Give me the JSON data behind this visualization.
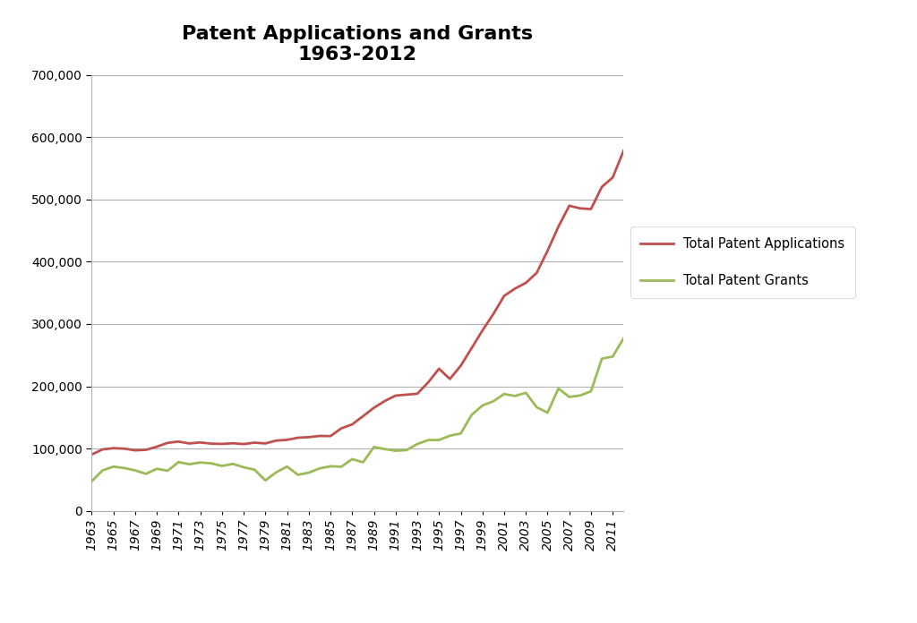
{
  "title_line1": "Patent Applications and Grants",
  "title_line2": "1963-2012",
  "years": [
    1963,
    1964,
    1965,
    1966,
    1967,
    1968,
    1969,
    1970,
    1971,
    1972,
    1973,
    1974,
    1975,
    1976,
    1977,
    1978,
    1979,
    1980,
    1981,
    1982,
    1983,
    1984,
    1985,
    1986,
    1987,
    1988,
    1989,
    1990,
    1991,
    1992,
    1993,
    1994,
    1995,
    1996,
    1997,
    1998,
    1999,
    2000,
    2001,
    2002,
    2003,
    2004,
    2005,
    2006,
    2007,
    2008,
    2009,
    2010,
    2011,
    2012
  ],
  "applications": [
    90400,
    98700,
    100600,
    99900,
    97200,
    98000,
    103000,
    109200,
    111200,
    108200,
    109800,
    107900,
    107500,
    108500,
    107200,
    109500,
    108200,
    112800,
    114000,
    117400,
    118300,
    120300,
    120000,
    132500,
    138800,
    152000,
    165500,
    176300,
    185000,
    186500,
    188000,
    206200,
    228200,
    211700,
    232900,
    261100,
    289500,
    315900,
    345000,
    356800,
    366000,
    382100,
    417500,
    456200,
    489800,
    485500,
    484500,
    520000,
    535100,
    577900
  ],
  "grants": [
    47400,
    65000,
    71000,
    68700,
    65000,
    59400,
    67500,
    64400,
    78300,
    74800,
    77700,
    76300,
    72100,
    75400,
    70000,
    66100,
    48900,
    61900,
    71100,
    57900,
    61300,
    68200,
    71600,
    70900,
    83100,
    77900,
    102500,
    99200,
    96500,
    97500,
    107300,
    113600,
    113800,
    120600,
    124200,
    154000,
    169100,
    175900,
    187600,
    184400,
    189600,
    166300,
    157700,
    196400,
    182900,
    185200,
    191900,
    244300,
    247700,
    276800
  ],
  "app_color": "#C0504D",
  "grant_color": "#9BBB59",
  "app_label": "Total Patent Applications",
  "grant_label": "Total Patent Grants",
  "ylim": [
    0,
    700000
  ],
  "yticks": [
    0,
    100000,
    200000,
    300000,
    400000,
    500000,
    600000,
    700000
  ],
  "background_color": "#FFFFFF",
  "grid_color": "#B0B0B0",
  "title_fontsize": 16,
  "tick_fontsize": 10,
  "legend_fontsize": 10.5
}
